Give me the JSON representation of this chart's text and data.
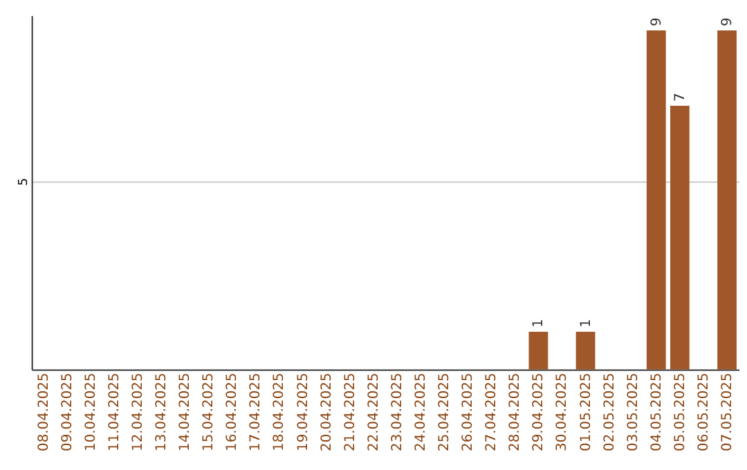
{
  "chart_data": {
    "type": "bar",
    "categories": [
      "08.04.2025",
      "09.04.2025",
      "10.04.2025",
      "11.04.2025",
      "12.04.2025",
      "13.04.2025",
      "14.04.2025",
      "15.04.2025",
      "16.04.2025",
      "17.04.2025",
      "18.04.2025",
      "19.04.2025",
      "20.04.2025",
      "21.04.2025",
      "22.04.2025",
      "23.04.2025",
      "24.04.2025",
      "25.04.2025",
      "26.04.2025",
      "27.04.2025",
      "28.04.2025",
      "29.04.2025",
      "30.04.2025",
      "01.05.2025",
      "02.05.2025",
      "03.05.2025",
      "04.05.2025",
      "05.05.2025",
      "06.05.2025",
      "07.05.2025"
    ],
    "values": [
      null,
      null,
      null,
      null,
      null,
      null,
      null,
      null,
      null,
      null,
      null,
      null,
      null,
      null,
      null,
      null,
      null,
      null,
      null,
      null,
      null,
      1,
      null,
      1,
      null,
      null,
      9,
      7,
      null,
      9
    ],
    "data_labels": true,
    "color": "#a0582a",
    "ylim": [
      0,
      9.4
    ],
    "yticks": [
      5
    ],
    "grid": "y"
  }
}
